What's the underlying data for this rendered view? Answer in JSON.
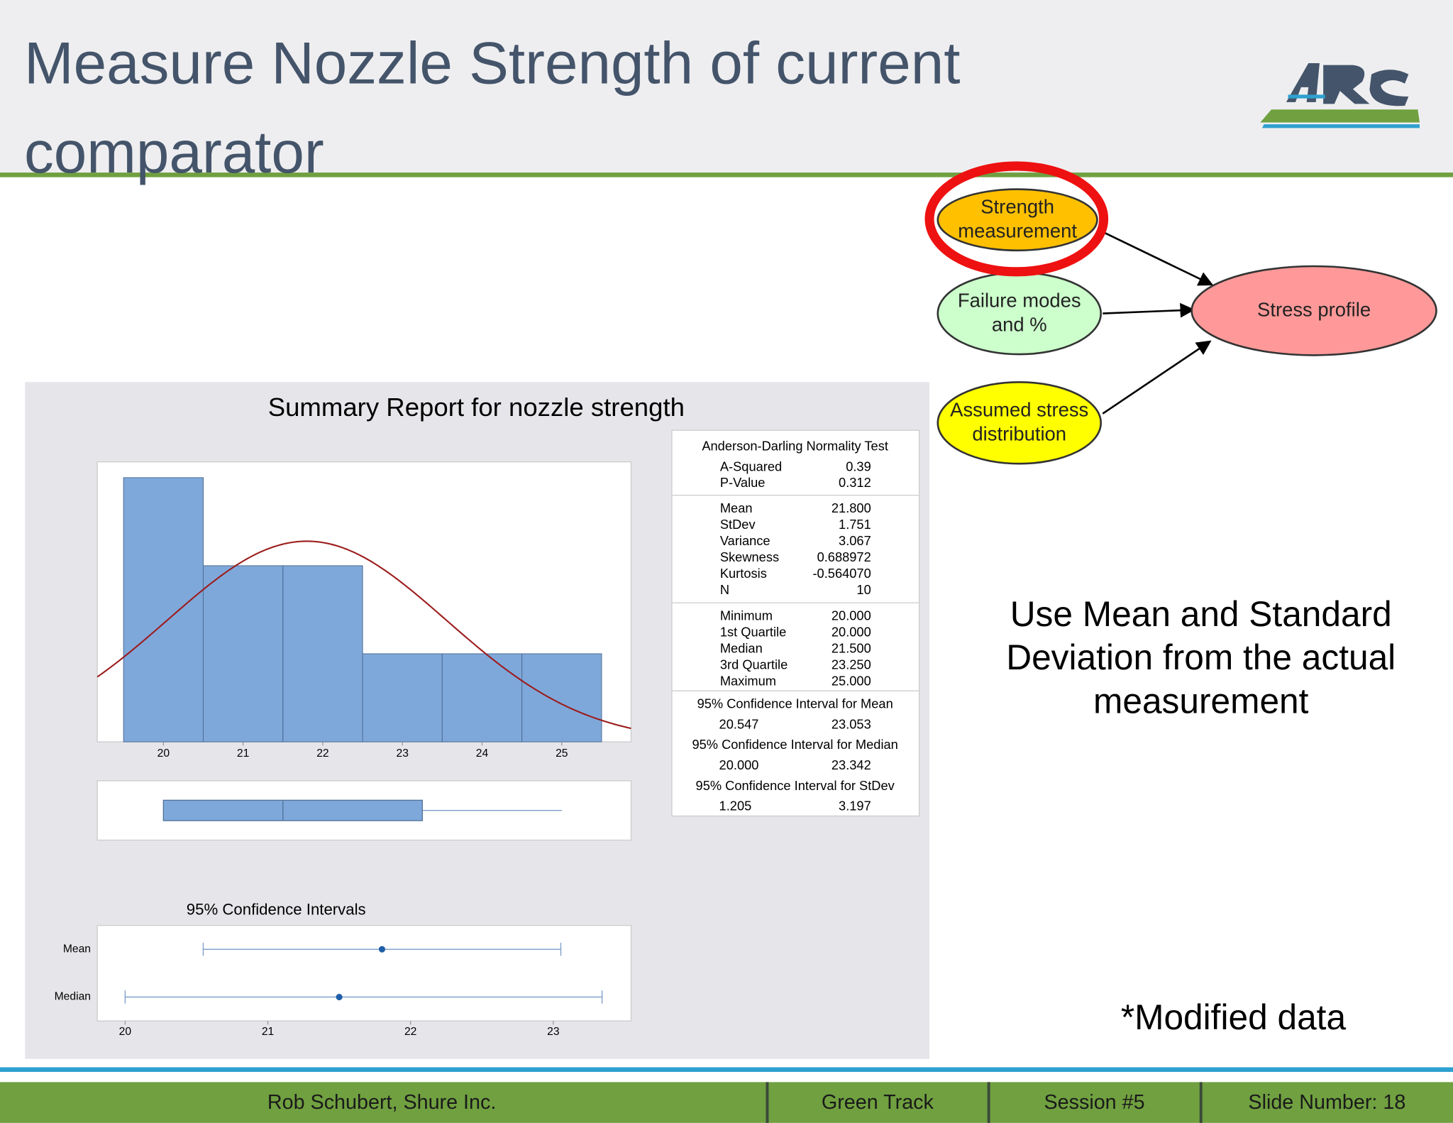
{
  "title": "Measure Nozzle Strength of current comparator",
  "diagram": {
    "nodes": [
      "Strength measurement",
      "Failure modes and %",
      "Assumed stress distribution",
      "Stress profile"
    ]
  },
  "note": "Use Mean and Standard Deviation from the actual measurement",
  "modified": "*Modified data",
  "footer": [
    "Rob Schubert, Shure Inc.",
    "Green Track",
    "Session #5",
    "Slide Number: 18"
  ],
  "report": {
    "title": "Summary Report for nozzle strength",
    "stats": [
      {
        "header": "Anderson-Darling Normality Test",
        "rows": [
          [
            "A-Squared",
            "0.39"
          ],
          [
            "P-Value",
            "0.312"
          ]
        ]
      },
      {
        "rows": [
          [
            "Mean",
            "21.800"
          ],
          [
            "StDev",
            "1.751"
          ],
          [
            "Variance",
            "3.067"
          ],
          [
            "Skewness",
            "0.688972"
          ],
          [
            "Kurtosis",
            "-0.564070"
          ],
          [
            "N",
            "10"
          ]
        ]
      },
      {
        "rows": [
          [
            "Minimum",
            "20.000"
          ],
          [
            "1st Quartile",
            "20.000"
          ],
          [
            "Median",
            "21.500"
          ],
          [
            "3rd Quartile",
            "23.250"
          ],
          [
            "Maximum",
            "25.000"
          ]
        ]
      },
      {
        "header": "95% Confidence Interval for Mean",
        "rows": [
          [
            "20.547",
            "23.053"
          ]
        ]
      },
      {
        "header": "95% Confidence Interval for Median",
        "rows": [
          [
            "20.000",
            "23.342"
          ]
        ]
      },
      {
        "header": "95% Confidence Interval for StDev",
        "rows": [
          [
            "1.205",
            "3.197"
          ]
        ]
      }
    ]
  },
  "chart_data": [
    {
      "type": "histogram",
      "bins": [
        19.5,
        20.5,
        21.5,
        22.5,
        23.5,
        24.5,
        25.5
      ],
      "values": [
        3,
        2,
        2,
        1,
        1,
        1
      ],
      "color": "#7fa8da",
      "xlim": [
        19.17,
        25.87
      ],
      "ylim": [
        0,
        3.18
      ],
      "xticks": [
        20,
        21,
        22,
        23,
        24,
        25
      ],
      "fit": {
        "mean": 21.8,
        "stdev": 1.751,
        "color": "#9b1c1c"
      }
    },
    {
      "type": "boxplot",
      "min": 20,
      "q1": 20,
      "median": 21.5,
      "q3": 23.25,
      "max": 25,
      "color": "#7fa8da",
      "xlim": [
        19.17,
        25.87
      ]
    },
    {
      "type": "interval",
      "title": "95% Confidence Intervals",
      "categories": [
        "Mean",
        "Median"
      ],
      "values": [
        21.8,
        21.5
      ],
      "low": [
        20.547,
        20
      ],
      "high": [
        23.053,
        23.342
      ],
      "color": "#1f5fa8",
      "xlim": [
        19.805,
        23.545
      ],
      "xticks": [
        20,
        21,
        22,
        23
      ]
    }
  ]
}
